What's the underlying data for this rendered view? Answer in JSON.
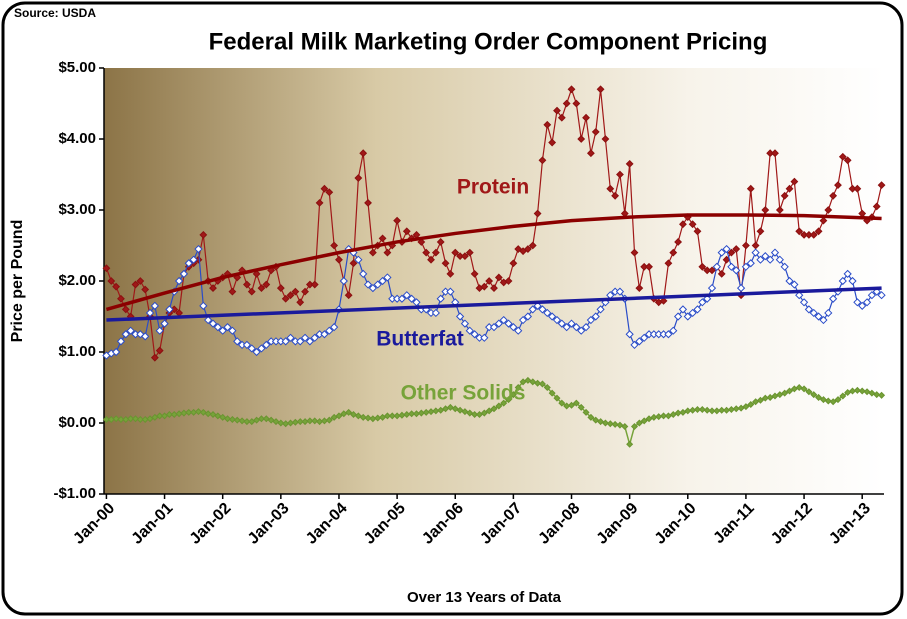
{
  "chart_data": {
    "type": "line",
    "title": "Federal Milk Marketing Order Component Pricing",
    "source": "Source: USDA",
    "y_label": "Price per Pound",
    "x_label": "Over 13 Years of Data",
    "ylim": [
      -1,
      5
    ],
    "yticks": [
      {
        "value": 5,
        "label": "$5.00"
      },
      {
        "value": 4,
        "label": "$4.00"
      },
      {
        "value": 3,
        "label": "$3.00"
      },
      {
        "value": 2,
        "label": "$2.00"
      },
      {
        "value": 1,
        "label": "$1.00"
      },
      {
        "value": 0,
        "label": "$0.00"
      },
      {
        "value": -1,
        "label": "-$1.00"
      }
    ],
    "grid": false,
    "categories": [
      "Jan-00",
      null,
      null,
      null,
      null,
      null,
      null,
      null,
      null,
      null,
      null,
      null,
      "Jan-01",
      null,
      null,
      null,
      null,
      null,
      null,
      null,
      null,
      null,
      null,
      null,
      "Jan-02",
      null,
      null,
      null,
      null,
      null,
      null,
      null,
      null,
      null,
      null,
      null,
      "Jan-03",
      null,
      null,
      null,
      null,
      null,
      null,
      null,
      null,
      null,
      null,
      null,
      "Jan-04",
      null,
      null,
      null,
      null,
      null,
      null,
      null,
      null,
      null,
      null,
      null,
      "Jan-05",
      null,
      null,
      null,
      null,
      null,
      null,
      null,
      null,
      null,
      null,
      null,
      "Jan-06",
      null,
      null,
      null,
      null,
      null,
      null,
      null,
      null,
      null,
      null,
      null,
      "Jan-07",
      null,
      null,
      null,
      null,
      null,
      null,
      null,
      null,
      null,
      null,
      null,
      "Jan-08",
      null,
      null,
      null,
      null,
      null,
      null,
      null,
      null,
      null,
      null,
      null,
      "Jan-09",
      null,
      null,
      null,
      null,
      null,
      null,
      null,
      null,
      null,
      null,
      null,
      "Jan-10",
      null,
      null,
      null,
      null,
      null,
      null,
      null,
      null,
      null,
      null,
      null,
      "Jan-11",
      null,
      null,
      null,
      null,
      null,
      null,
      null,
      null,
      null,
      null,
      null,
      "Jan-12",
      null,
      null,
      null,
      null,
      null,
      null,
      null,
      null,
      null,
      null,
      null,
      "Jan-13",
      null,
      null,
      null,
      null
    ],
    "series": [
      {
        "name": "Protein",
        "color": "#a01818",
        "trend_color": "#8b0000",
        "values": [
          2.18,
          2.0,
          1.92,
          1.75,
          1.6,
          1.5,
          1.95,
          2.0,
          1.88,
          1.5,
          0.92,
          1.02,
          1.4,
          1.55,
          1.6,
          1.55,
          2.1,
          2.2,
          2.25,
          2.3,
          2.65,
          2.0,
          1.9,
          2.0,
          2.05,
          2.1,
          1.85,
          2.05,
          2.15,
          1.95,
          1.85,
          2.1,
          1.9,
          1.95,
          2.15,
          2.2,
          1.9,
          1.75,
          1.8,
          1.85,
          1.7,
          1.85,
          1.95,
          1.95,
          3.1,
          3.3,
          3.25,
          2.5,
          2.3,
          2.0,
          1.8,
          2.25,
          3.45,
          3.8,
          3.1,
          2.4,
          2.5,
          2.6,
          2.4,
          2.5,
          2.85,
          2.55,
          2.7,
          2.6,
          2.65,
          2.55,
          2.4,
          2.3,
          2.4,
          2.55,
          2.25,
          2.1,
          2.4,
          2.35,
          2.35,
          2.4,
          2.1,
          1.9,
          1.92,
          2.0,
          1.9,
          2.05,
          1.98,
          2.0,
          2.25,
          2.45,
          2.42,
          2.45,
          2.5,
          2.95,
          3.7,
          4.2,
          3.95,
          4.4,
          4.3,
          4.5,
          4.7,
          4.5,
          4.0,
          4.3,
          3.8,
          4.1,
          4.7,
          4.0,
          3.3,
          3.2,
          3.5,
          2.95,
          3.65,
          2.4,
          1.9,
          2.2,
          2.2,
          1.75,
          1.7,
          1.72,
          2.25,
          2.4,
          2.55,
          2.8,
          2.9,
          2.8,
          2.7,
          2.2,
          2.15,
          2.15,
          2.2,
          2.1,
          2.3,
          2.4,
          2.45,
          1.8,
          2.5,
          3.3,
          2.5,
          2.7,
          3.0,
          3.8,
          3.8,
          3.0,
          3.2,
          3.3,
          3.4,
          2.7,
          2.65,
          2.65,
          2.65,
          2.7,
          2.85,
          3.0,
          3.2,
          3.35,
          3.75,
          3.7,
          3.3,
          3.3,
          2.95,
          2.85,
          2.9,
          3.05,
          3.35
        ],
        "trend": {
          "x": [
            0,
            12,
            24,
            36,
            48,
            60,
            72,
            84,
            96,
            108,
            120,
            132,
            144,
            156,
            160
          ],
          "values": [
            1.6,
            1.83,
            2.05,
            2.23,
            2.4,
            2.55,
            2.67,
            2.77,
            2.85,
            2.9,
            2.93,
            2.93,
            2.92,
            2.89,
            2.88
          ]
        }
      },
      {
        "name": "Butterfat",
        "color": "#2a4cc8",
        "trend_color": "#1a1a9c",
        "values": [
          0.95,
          0.98,
          1.0,
          1.15,
          1.25,
          1.3,
          1.25,
          1.25,
          1.22,
          1.55,
          1.65,
          1.3,
          1.4,
          1.6,
          1.85,
          2.0,
          2.1,
          2.25,
          2.3,
          2.45,
          1.65,
          1.45,
          1.4,
          1.35,
          1.3,
          1.35,
          1.3,
          1.15,
          1.1,
          1.1,
          1.05,
          1.0,
          1.05,
          1.1,
          1.15,
          1.15,
          1.15,
          1.15,
          1.2,
          1.15,
          1.15,
          1.2,
          1.15,
          1.2,
          1.25,
          1.25,
          1.3,
          1.35,
          1.6,
          2.0,
          2.45,
          2.4,
          2.3,
          2.1,
          1.95,
          1.9,
          1.95,
          2.0,
          2.05,
          1.75,
          1.75,
          1.75,
          1.8,
          1.75,
          1.7,
          1.6,
          1.6,
          1.55,
          1.55,
          1.75,
          1.85,
          1.85,
          1.7,
          1.5,
          1.4,
          1.3,
          1.25,
          1.2,
          1.2,
          1.35,
          1.35,
          1.4,
          1.45,
          1.4,
          1.35,
          1.3,
          1.45,
          1.5,
          1.6,
          1.65,
          1.6,
          1.55,
          1.5,
          1.45,
          1.4,
          1.35,
          1.4,
          1.35,
          1.3,
          1.35,
          1.45,
          1.5,
          1.6,
          1.7,
          1.8,
          1.85,
          1.85,
          1.75,
          1.25,
          1.1,
          1.15,
          1.2,
          1.25,
          1.25,
          1.25,
          1.25,
          1.25,
          1.3,
          1.5,
          1.6,
          1.5,
          1.55,
          1.6,
          1.7,
          1.75,
          1.9,
          2.2,
          2.4,
          2.45,
          2.2,
          2.15,
          1.9,
          2.2,
          2.25,
          2.4,
          2.3,
          2.35,
          2.3,
          2.4,
          2.3,
          2.2,
          2.0,
          1.95,
          1.8,
          1.7,
          1.6,
          1.55,
          1.5,
          1.45,
          1.55,
          1.75,
          1.85,
          2.0,
          2.1,
          2.0,
          1.7,
          1.65,
          1.7,
          1.8,
          1.85,
          1.8
        ],
        "trend": {
          "x": [
            0,
            160
          ],
          "values": [
            1.45,
            1.9
          ]
        }
      },
      {
        "name": "Other Solids",
        "color": "#77a33a",
        "values": [
          0.05,
          0.05,
          0.06,
          0.05,
          0.05,
          0.06,
          0.06,
          0.05,
          0.05,
          0.06,
          0.08,
          0.1,
          0.1,
          0.12,
          0.12,
          0.13,
          0.14,
          0.15,
          0.15,
          0.16,
          0.15,
          0.13,
          0.12,
          0.1,
          0.08,
          0.06,
          0.05,
          0.04,
          0.03,
          0.02,
          0.02,
          0.04,
          0.06,
          0.06,
          0.04,
          0.02,
          0.0,
          -0.01,
          0.0,
          0.01,
          0.02,
          0.02,
          0.03,
          0.03,
          0.02,
          0.03,
          0.04,
          0.08,
          0.1,
          0.13,
          0.15,
          0.12,
          0.1,
          0.08,
          0.07,
          0.06,
          0.07,
          0.08,
          0.1,
          0.1,
          0.1,
          0.11,
          0.12,
          0.13,
          0.13,
          0.14,
          0.15,
          0.16,
          0.17,
          0.18,
          0.2,
          0.22,
          0.2,
          0.18,
          0.16,
          0.14,
          0.12,
          0.12,
          0.14,
          0.17,
          0.2,
          0.24,
          0.28,
          0.33,
          0.4,
          0.5,
          0.58,
          0.6,
          0.58,
          0.56,
          0.55,
          0.5,
          0.42,
          0.35,
          0.28,
          0.24,
          0.25,
          0.28,
          0.22,
          0.15,
          0.08,
          0.04,
          0.02,
          0.0,
          -0.01,
          -0.02,
          -0.03,
          -0.05,
          -0.3,
          -0.05,
          0.0,
          0.03,
          0.06,
          0.08,
          0.09,
          0.1,
          0.1,
          0.12,
          0.14,
          0.15,
          0.17,
          0.18,
          0.19,
          0.19,
          0.18,
          0.17,
          0.17,
          0.18,
          0.18,
          0.19,
          0.2,
          0.21,
          0.23,
          0.26,
          0.3,
          0.32,
          0.35,
          0.36,
          0.38,
          0.4,
          0.42,
          0.45,
          0.48,
          0.5,
          0.48,
          0.44,
          0.4,
          0.36,
          0.33,
          0.31,
          0.3,
          0.33,
          0.38,
          0.43,
          0.45,
          0.46,
          0.45,
          0.44,
          0.42,
          0.4,
          0.39
        ]
      }
    ]
  }
}
